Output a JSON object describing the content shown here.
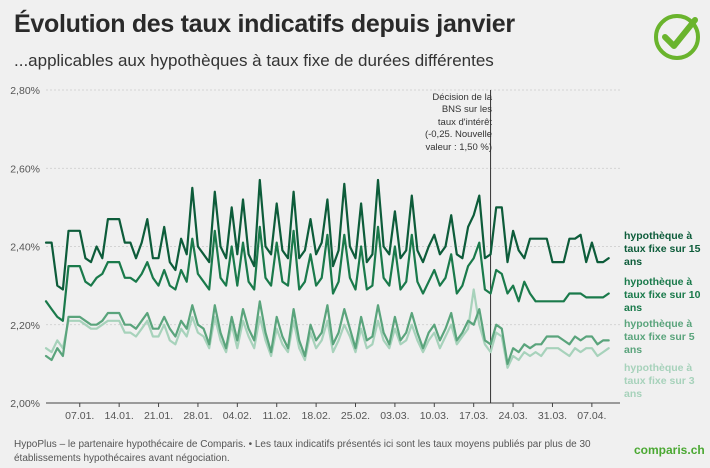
{
  "header": {
    "title": "Évolution des taux indicatifs depuis janvier",
    "subtitle": "...applicables aux hypothèques à taux fixe de durées différentes"
  },
  "logo": {
    "icon": "check-circle-icon",
    "color": "#6ab42d"
  },
  "footer": {
    "note": "HypoPlus – le partenaire hypothécaire de Comparis. • Les taux indicatifs présentés ici sont les taux moyens publiés par plus de 30 établissements hypothécaires avant négociation.",
    "brand": "comparis.ch"
  },
  "chart_data": {
    "type": "line",
    "title": "Évolution des taux indicatifs depuis janvier",
    "xlabel": "",
    "ylabel": "",
    "ylim": [
      2.0,
      2.8
    ],
    "yticks": [
      2.0,
      2.2,
      2.4,
      2.6,
      2.8
    ],
    "ytick_labels": [
      "2,00%",
      "2,20%",
      "2,40%",
      "2,60%",
      "2,80%"
    ],
    "xlim": [
      0,
      102
    ],
    "xticks": [
      6,
      13,
      20,
      27,
      34,
      41,
      48,
      55,
      62,
      69,
      76,
      83,
      90,
      97
    ],
    "xtick_labels": [
      "07.01.",
      "14.01.",
      "21.01.",
      "28.01.",
      "04.02.",
      "11.02.",
      "18.02.",
      "25.02.",
      "03.03.",
      "10.03.",
      "17.03.",
      "24.03.",
      "31.03.",
      "07.04."
    ],
    "grid": true,
    "annotation": {
      "x": 79,
      "text": "Décision de la BNS sur les taux d'intérêt (-0,25. Nouvelle valeur : 1,50 %)"
    },
    "series": [
      {
        "name": "hypothèque à taux fixe sur 15 ans",
        "color": "#0d5c3a",
        "x": [
          0,
          1,
          2,
          3,
          4,
          5,
          6,
          7,
          8,
          9,
          10,
          11,
          12,
          13,
          14,
          15,
          16,
          17,
          18,
          19,
          20,
          21,
          22,
          23,
          24,
          25,
          26,
          27,
          28,
          29,
          30,
          31,
          32,
          33,
          34,
          35,
          36,
          37,
          38,
          39,
          40,
          41,
          42,
          43,
          44,
          45,
          46,
          47,
          48,
          49,
          50,
          51,
          52,
          53,
          54,
          55,
          56,
          57,
          58,
          59,
          60,
          61,
          62,
          63,
          64,
          65,
          66,
          67,
          68,
          69,
          70,
          71,
          72,
          73,
          74,
          75,
          76,
          77,
          78,
          79,
          80,
          81,
          82,
          83,
          84,
          85,
          86,
          87,
          88,
          89,
          90,
          91,
          92,
          93,
          94,
          95,
          96,
          97,
          98,
          99,
          100
        ],
        "values": [
          2.41,
          2.41,
          2.3,
          2.29,
          2.44,
          2.44,
          2.44,
          2.37,
          2.36,
          2.4,
          2.37,
          2.47,
          2.47,
          2.47,
          2.41,
          2.41,
          2.37,
          2.41,
          2.47,
          2.37,
          2.37,
          2.45,
          2.36,
          2.34,
          2.42,
          2.38,
          2.55,
          2.4,
          2.38,
          2.36,
          2.54,
          2.4,
          2.37,
          2.5,
          2.38,
          2.52,
          2.38,
          2.35,
          2.57,
          2.4,
          2.38,
          2.51,
          2.39,
          2.37,
          2.54,
          2.37,
          2.39,
          2.47,
          2.38,
          2.41,
          2.52,
          2.35,
          2.39,
          2.56,
          2.4,
          2.37,
          2.51,
          2.36,
          2.38,
          2.57,
          2.4,
          2.38,
          2.49,
          2.37,
          2.39,
          2.53,
          2.39,
          2.36,
          2.4,
          2.43,
          2.38,
          2.4,
          2.48,
          2.38,
          2.37,
          2.45,
          2.48,
          2.53,
          2.37,
          2.38,
          2.5,
          2.5,
          2.36,
          2.44,
          2.39,
          2.37,
          2.42,
          2.42,
          2.42,
          2.42,
          2.36,
          2.36,
          2.36,
          2.42,
          2.42,
          2.43,
          2.36,
          2.41,
          2.36,
          2.36,
          2.37
        ]
      },
      {
        "name": "hypothèque à taux fixe sur 10 ans",
        "color": "#1a7a4b",
        "x": [
          0,
          1,
          2,
          3,
          4,
          5,
          6,
          7,
          8,
          9,
          10,
          11,
          12,
          13,
          14,
          15,
          16,
          17,
          18,
          19,
          20,
          21,
          22,
          23,
          24,
          25,
          26,
          27,
          28,
          29,
          30,
          31,
          32,
          33,
          34,
          35,
          36,
          37,
          38,
          39,
          40,
          41,
          42,
          43,
          44,
          45,
          46,
          47,
          48,
          49,
          50,
          51,
          52,
          53,
          54,
          55,
          56,
          57,
          58,
          59,
          60,
          61,
          62,
          63,
          64,
          65,
          66,
          67,
          68,
          69,
          70,
          71,
          72,
          73,
          74,
          75,
          76,
          77,
          78,
          79,
          80,
          81,
          82,
          83,
          84,
          85,
          86,
          87,
          88,
          89,
          90,
          91,
          92,
          93,
          94,
          95,
          96,
          97,
          98,
          99,
          100
        ],
        "values": [
          2.26,
          2.24,
          2.22,
          2.21,
          2.35,
          2.35,
          2.35,
          2.31,
          2.3,
          2.32,
          2.33,
          2.36,
          2.36,
          2.36,
          2.32,
          2.32,
          2.31,
          2.33,
          2.36,
          2.32,
          2.3,
          2.34,
          2.3,
          2.29,
          2.34,
          2.31,
          2.42,
          2.33,
          2.31,
          2.29,
          2.44,
          2.32,
          2.3,
          2.4,
          2.3,
          2.41,
          2.31,
          2.29,
          2.45,
          2.32,
          2.3,
          2.41,
          2.31,
          2.3,
          2.44,
          2.29,
          2.31,
          2.38,
          2.3,
          2.32,
          2.43,
          2.28,
          2.31,
          2.43,
          2.32,
          2.29,
          2.4,
          2.29,
          2.3,
          2.45,
          2.32,
          2.3,
          2.4,
          2.29,
          2.31,
          2.43,
          2.31,
          2.28,
          2.31,
          2.34,
          2.3,
          2.32,
          2.38,
          2.28,
          2.3,
          2.35,
          2.37,
          2.41,
          2.29,
          2.28,
          2.34,
          2.33,
          2.28,
          2.3,
          2.26,
          2.31,
          2.28,
          2.26,
          2.26,
          2.26,
          2.26,
          2.26,
          2.26,
          2.28,
          2.28,
          2.28,
          2.27,
          2.27,
          2.27,
          2.27,
          2.28
        ]
      },
      {
        "name": "hypothèque à taux fixe sur 5 ans",
        "color": "#5aa47c",
        "x": [
          0,
          1,
          2,
          3,
          4,
          5,
          6,
          7,
          8,
          9,
          10,
          11,
          12,
          13,
          14,
          15,
          16,
          17,
          18,
          19,
          20,
          21,
          22,
          23,
          24,
          25,
          26,
          27,
          28,
          29,
          30,
          31,
          32,
          33,
          34,
          35,
          36,
          37,
          38,
          39,
          40,
          41,
          42,
          43,
          44,
          45,
          46,
          47,
          48,
          49,
          50,
          51,
          52,
          53,
          54,
          55,
          56,
          57,
          58,
          59,
          60,
          61,
          62,
          63,
          64,
          65,
          66,
          67,
          68,
          69,
          70,
          71,
          72,
          73,
          74,
          75,
          76,
          77,
          78,
          79,
          80,
          81,
          82,
          83,
          84,
          85,
          86,
          87,
          88,
          89,
          90,
          91,
          92,
          93,
          94,
          95,
          96,
          97,
          98,
          99,
          100
        ],
        "values": [
          2.12,
          2.11,
          2.14,
          2.12,
          2.22,
          2.22,
          2.22,
          2.21,
          2.2,
          2.2,
          2.21,
          2.23,
          2.23,
          2.23,
          2.2,
          2.2,
          2.19,
          2.21,
          2.23,
          2.19,
          2.19,
          2.22,
          2.19,
          2.17,
          2.21,
          2.19,
          2.25,
          2.2,
          2.19,
          2.15,
          2.25,
          2.18,
          2.14,
          2.22,
          2.16,
          2.24,
          2.19,
          2.16,
          2.26,
          2.18,
          2.13,
          2.22,
          2.17,
          2.14,
          2.24,
          2.16,
          2.12,
          2.2,
          2.16,
          2.18,
          2.25,
          2.15,
          2.18,
          2.24,
          2.19,
          2.14,
          2.22,
          2.16,
          2.17,
          2.25,
          2.18,
          2.15,
          2.22,
          2.16,
          2.18,
          2.23,
          2.18,
          2.14,
          2.18,
          2.2,
          2.16,
          2.19,
          2.23,
          2.16,
          2.18,
          2.21,
          2.2,
          2.24,
          2.16,
          2.15,
          2.2,
          2.19,
          2.1,
          2.14,
          2.13,
          2.15,
          2.14,
          2.15,
          2.15,
          2.17,
          2.17,
          2.17,
          2.16,
          2.15,
          2.17,
          2.16,
          2.17,
          2.17,
          2.15,
          2.16,
          2.16
        ]
      },
      {
        "name": "hypothèque à taux fixe sur 3 ans",
        "color": "#a7d2bb",
        "x": [
          0,
          1,
          2,
          3,
          4,
          5,
          6,
          7,
          8,
          9,
          10,
          11,
          12,
          13,
          14,
          15,
          16,
          17,
          18,
          19,
          20,
          21,
          22,
          23,
          24,
          25,
          26,
          27,
          28,
          29,
          30,
          31,
          32,
          33,
          34,
          35,
          36,
          37,
          38,
          39,
          40,
          41,
          42,
          43,
          44,
          45,
          46,
          47,
          48,
          49,
          50,
          51,
          52,
          53,
          54,
          55,
          56,
          57,
          58,
          59,
          60,
          61,
          62,
          63,
          64,
          65,
          66,
          67,
          68,
          69,
          70,
          71,
          72,
          73,
          74,
          75,
          76,
          77,
          78,
          79,
          80,
          81,
          82,
          83,
          84,
          85,
          86,
          87,
          88,
          89,
          90,
          91,
          92,
          93,
          94,
          95,
          96,
          97,
          98,
          99,
          100
        ],
        "values": [
          2.14,
          2.13,
          2.16,
          2.14,
          2.21,
          2.21,
          2.21,
          2.2,
          2.19,
          2.19,
          2.2,
          2.21,
          2.21,
          2.21,
          2.18,
          2.18,
          2.17,
          2.19,
          2.21,
          2.17,
          2.17,
          2.2,
          2.16,
          2.15,
          2.19,
          2.17,
          2.22,
          2.18,
          2.17,
          2.14,
          2.22,
          2.16,
          2.13,
          2.2,
          2.14,
          2.21,
          2.17,
          2.14,
          2.22,
          2.16,
          2.12,
          2.19,
          2.15,
          2.13,
          2.21,
          2.14,
          2.11,
          2.18,
          2.14,
          2.16,
          2.21,
          2.13,
          2.16,
          2.2,
          2.17,
          2.13,
          2.19,
          2.14,
          2.15,
          2.21,
          2.16,
          2.14,
          2.19,
          2.15,
          2.16,
          2.2,
          2.16,
          2.13,
          2.16,
          2.18,
          2.14,
          2.17,
          2.2,
          2.15,
          2.17,
          2.19,
          2.29,
          2.2,
          2.15,
          2.13,
          2.18,
          2.17,
          2.09,
          2.12,
          2.11,
          2.13,
          2.12,
          2.13,
          2.12,
          2.14,
          2.14,
          2.14,
          2.13,
          2.12,
          2.14,
          2.13,
          2.14,
          2.14,
          2.12,
          2.13,
          2.14
        ]
      }
    ]
  }
}
